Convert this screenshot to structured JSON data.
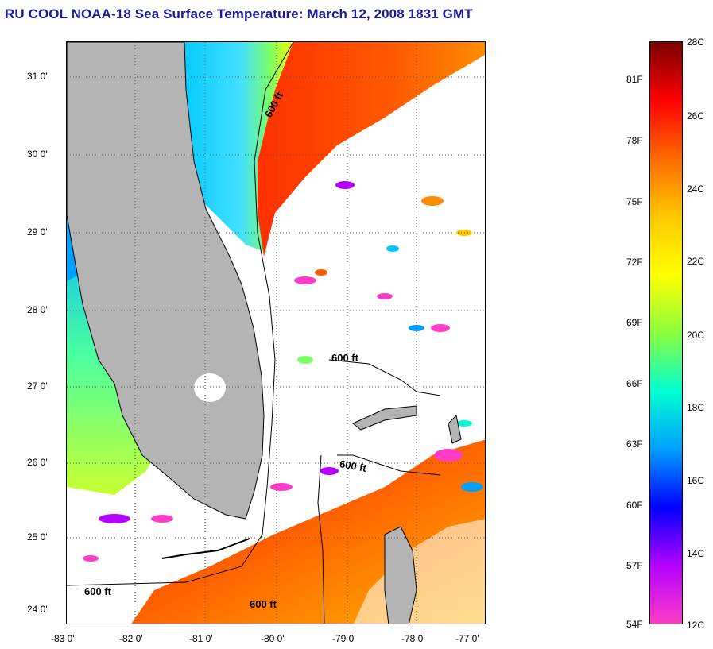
{
  "title": "RU COOL  NOAA-18  Sea Surface Temperature:  March 12, 2008 1831 GMT",
  "map": {
    "lat_labels": [
      "31 0'",
      "30 0'",
      "29 0'",
      "28 0'",
      "27 0'",
      "26 0'",
      "25 0'",
      "24 0'"
    ],
    "lon_labels": [
      "-83 0'",
      "-82 0'",
      "-81 0'",
      "-80 0'",
      "-79 0'",
      "-78 0'",
      "-77 0'"
    ],
    "contour_labels": [
      "600 ft",
      "600 ft",
      "600 ft",
      "600 ft",
      "600 ft"
    ],
    "colors": {
      "land": "#b4b4b4",
      "cloud": "#ffffff",
      "coast": "#000000"
    }
  },
  "colorbar": {
    "fahrenheit_labels": [
      "81F",
      "78F",
      "75F",
      "72F",
      "69F",
      "66F",
      "63F",
      "60F",
      "57F",
      "54F"
    ],
    "celsius_labels": [
      "28C",
      "26C",
      "24C",
      "22C",
      "20C",
      "18C",
      "16C",
      "14C",
      "12C"
    ],
    "range_c": [
      12,
      28
    ],
    "gradient_colors": [
      "#7a0000",
      "#ff0000",
      "#ff6a00",
      "#ffc800",
      "#ffff00",
      "#8cff3c",
      "#00ffd2",
      "#00a0ff",
      "#0000ff",
      "#b400ff",
      "#ff3cc8"
    ]
  }
}
